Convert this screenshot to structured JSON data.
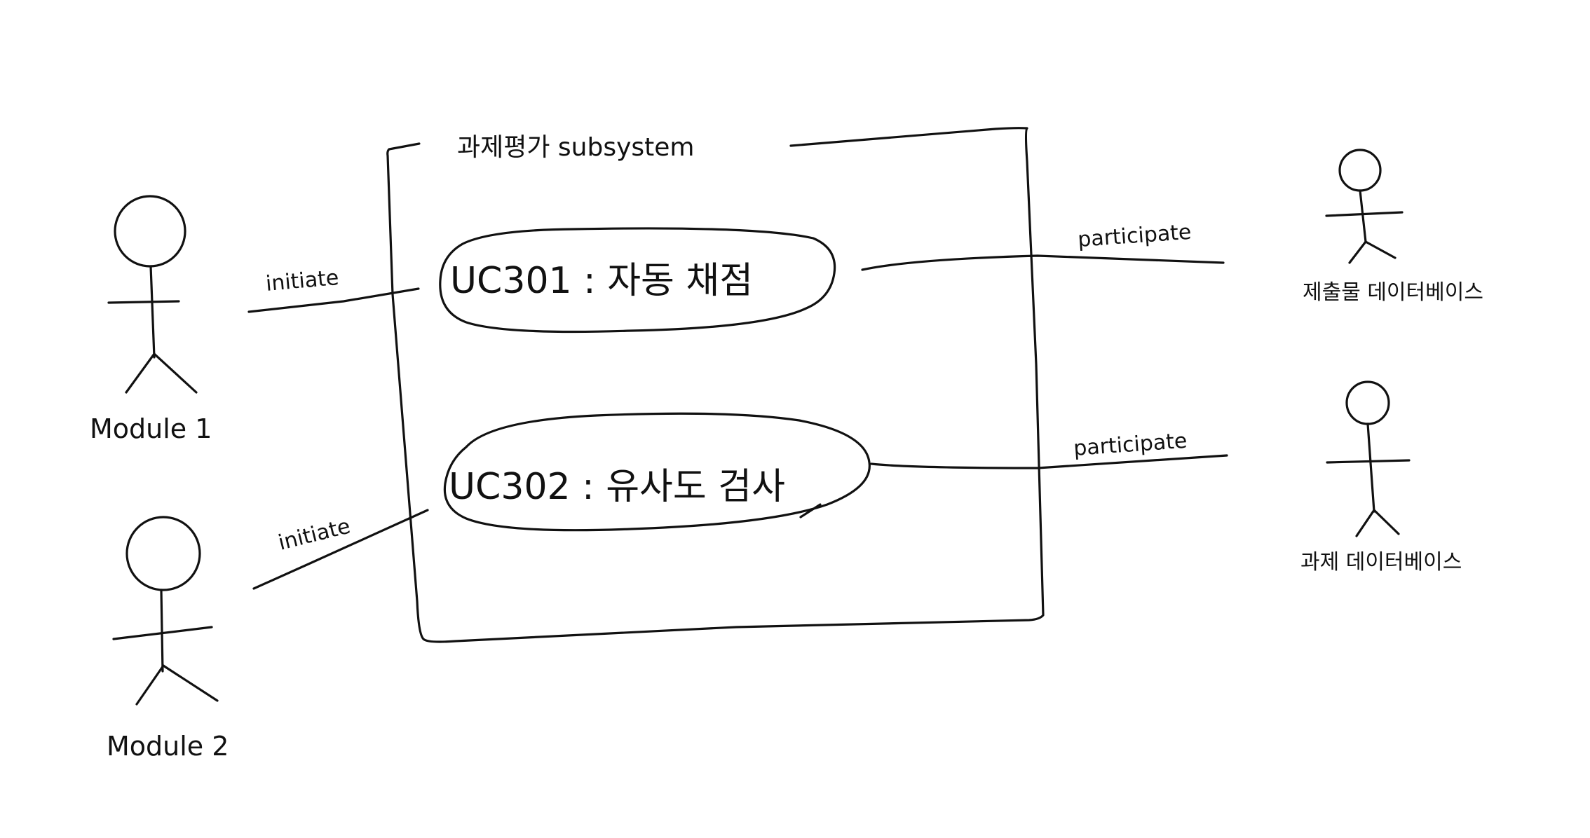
{
  "diagram": {
    "system": {
      "title": "과제평가  subsystem"
    },
    "use_cases": [
      {
        "label": "UC301 : 자동 채점"
      },
      {
        "label": "UC302 : 유사도 검사"
      }
    ],
    "actors": [
      {
        "label": "Module 1"
      },
      {
        "label": "Module 2"
      },
      {
        "label": "제출물 데이터베이스"
      },
      {
        "label": "과제 데이터베이스"
      }
    ],
    "associations": [
      {
        "label": "initiate"
      },
      {
        "label": "initiate"
      },
      {
        "label": "participate"
      },
      {
        "label": "participate"
      }
    ],
    "colors": {
      "ink": "#111111",
      "background": "#ffffff"
    }
  }
}
